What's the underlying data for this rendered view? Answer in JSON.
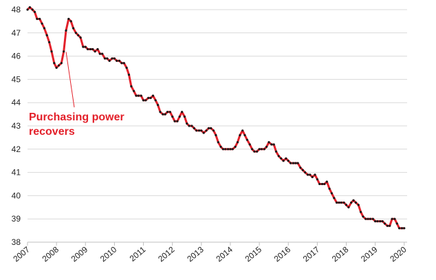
{
  "chart_data": {
    "type": "line",
    "title": "",
    "xlabel": "",
    "ylabel": "",
    "ylim": [
      38,
      48
    ],
    "xlim": [
      2007,
      2020.1
    ],
    "y_ticks": [
      "38",
      "39",
      "40",
      "41",
      "42",
      "43",
      "44",
      "45",
      "46",
      "47",
      "48"
    ],
    "x_ticks": [
      "2007",
      "2008",
      "2009",
      "2010",
      "2011",
      "2012",
      "2013",
      "2014",
      "2015",
      "2016",
      "2017",
      "2018",
      "2019",
      "2020"
    ],
    "grid": "horizontal",
    "legend": "none",
    "line_color": "#e3202a",
    "marker_color": "#1a1a1a",
    "series": [
      {
        "x": [
          2007.0,
          2007.08,
          2007.17,
          2007.25,
          2007.33,
          2007.42,
          2007.5,
          2007.58,
          2007.67,
          2007.75,
          2007.83,
          2007.92,
          2008.0,
          2008.08,
          2008.17,
          2008.25,
          2008.33,
          2008.42,
          2008.5,
          2008.58,
          2008.67,
          2008.75,
          2008.83,
          2008.92,
          2009.0,
          2009.08,
          2009.17,
          2009.25,
          2009.33,
          2009.42,
          2009.5,
          2009.58,
          2009.67,
          2009.75,
          2009.83,
          2009.92,
          2010.0,
          2010.08,
          2010.17,
          2010.25,
          2010.33,
          2010.42,
          2010.5,
          2010.58,
          2010.67,
          2010.75,
          2010.83,
          2010.92,
          2011.0,
          2011.08,
          2011.17,
          2011.25,
          2011.33,
          2011.42,
          2011.5,
          2011.58,
          2011.67,
          2011.75,
          2011.83,
          2011.92,
          2012.0,
          2012.08,
          2012.17,
          2012.25,
          2012.33,
          2012.42,
          2012.5,
          2012.58,
          2012.67,
          2012.75,
          2012.83,
          2012.92,
          2013.0,
          2013.08,
          2013.17,
          2013.25,
          2013.33,
          2013.42,
          2013.5,
          2013.58,
          2013.67,
          2013.75,
          2013.83,
          2013.92,
          2014.0,
          2014.08,
          2014.17,
          2014.25,
          2014.33,
          2014.42,
          2014.5,
          2014.58,
          2014.67,
          2014.75,
          2014.83,
          2014.92,
          2015.0,
          2015.08,
          2015.17,
          2015.25,
          2015.33,
          2015.42,
          2015.5,
          2015.58,
          2015.67,
          2015.75,
          2015.83,
          2015.92,
          2016.0,
          2016.08,
          2016.17,
          2016.25,
          2016.33,
          2016.42,
          2016.5,
          2016.58,
          2016.67,
          2016.75,
          2016.83,
          2016.92,
          2017.0,
          2017.08,
          2017.17,
          2017.25,
          2017.33,
          2017.42,
          2017.5,
          2017.58,
          2017.67,
          2017.75,
          2017.83,
          2017.92,
          2018.0,
          2018.08,
          2018.17,
          2018.25,
          2018.33,
          2018.42,
          2018.5,
          2018.58,
          2018.67,
          2018.75,
          2018.83,
          2018.92,
          2019.0,
          2019.08,
          2019.17,
          2019.25,
          2019.33,
          2019.42,
          2019.5,
          2019.58,
          2019.67,
          2019.75,
          2019.83,
          2019.92,
          2020.0
        ],
        "y": [
          48.0,
          48.1,
          48.0,
          47.9,
          47.6,
          47.6,
          47.4,
          47.2,
          46.9,
          46.6,
          46.2,
          45.7,
          45.5,
          45.6,
          45.7,
          46.2,
          47.1,
          47.6,
          47.5,
          47.2,
          47.0,
          46.9,
          46.8,
          46.4,
          46.4,
          46.3,
          46.3,
          46.3,
          46.2,
          46.3,
          46.1,
          46.1,
          45.9,
          45.9,
          45.8,
          45.9,
          45.9,
          45.8,
          45.8,
          45.7,
          45.7,
          45.5,
          45.2,
          44.7,
          44.5,
          44.3,
          44.3,
          44.3,
          44.1,
          44.1,
          44.2,
          44.2,
          44.3,
          44.1,
          43.9,
          43.6,
          43.5,
          43.5,
          43.6,
          43.6,
          43.4,
          43.2,
          43.2,
          43.4,
          43.6,
          43.4,
          43.1,
          43.0,
          43.0,
          42.9,
          42.8,
          42.8,
          42.8,
          42.7,
          42.8,
          42.9,
          42.9,
          42.8,
          42.6,
          42.3,
          42.1,
          42.0,
          42.0,
          42.0,
          42.0,
          42.0,
          42.1,
          42.3,
          42.6,
          42.8,
          42.6,
          42.4,
          42.2,
          42.0,
          41.9,
          41.9,
          42.0,
          42.0,
          42.0,
          42.1,
          42.3,
          42.2,
          42.2,
          41.9,
          41.7,
          41.6,
          41.5,
          41.6,
          41.5,
          41.4,
          41.4,
          41.4,
          41.4,
          41.2,
          41.1,
          41.0,
          40.9,
          40.9,
          40.8,
          40.9,
          40.7,
          40.5,
          40.5,
          40.5,
          40.6,
          40.3,
          40.1,
          39.9,
          39.7,
          39.7,
          39.7,
          39.7,
          39.6,
          39.5,
          39.7,
          39.8,
          39.7,
          39.6,
          39.3,
          39.1,
          39.0,
          39.0,
          39.0,
          39.0,
          38.9,
          38.9,
          38.9,
          38.9,
          38.8,
          38.7,
          38.7,
          39.0,
          39.0,
          38.8,
          38.6,
          38.6,
          38.6
        ]
      }
    ],
    "annotation": {
      "lines": [
        "Purchasing power",
        "recovers"
      ],
      "points_to": {
        "x": 2008.33,
        "y": 46.3
      }
    }
  }
}
